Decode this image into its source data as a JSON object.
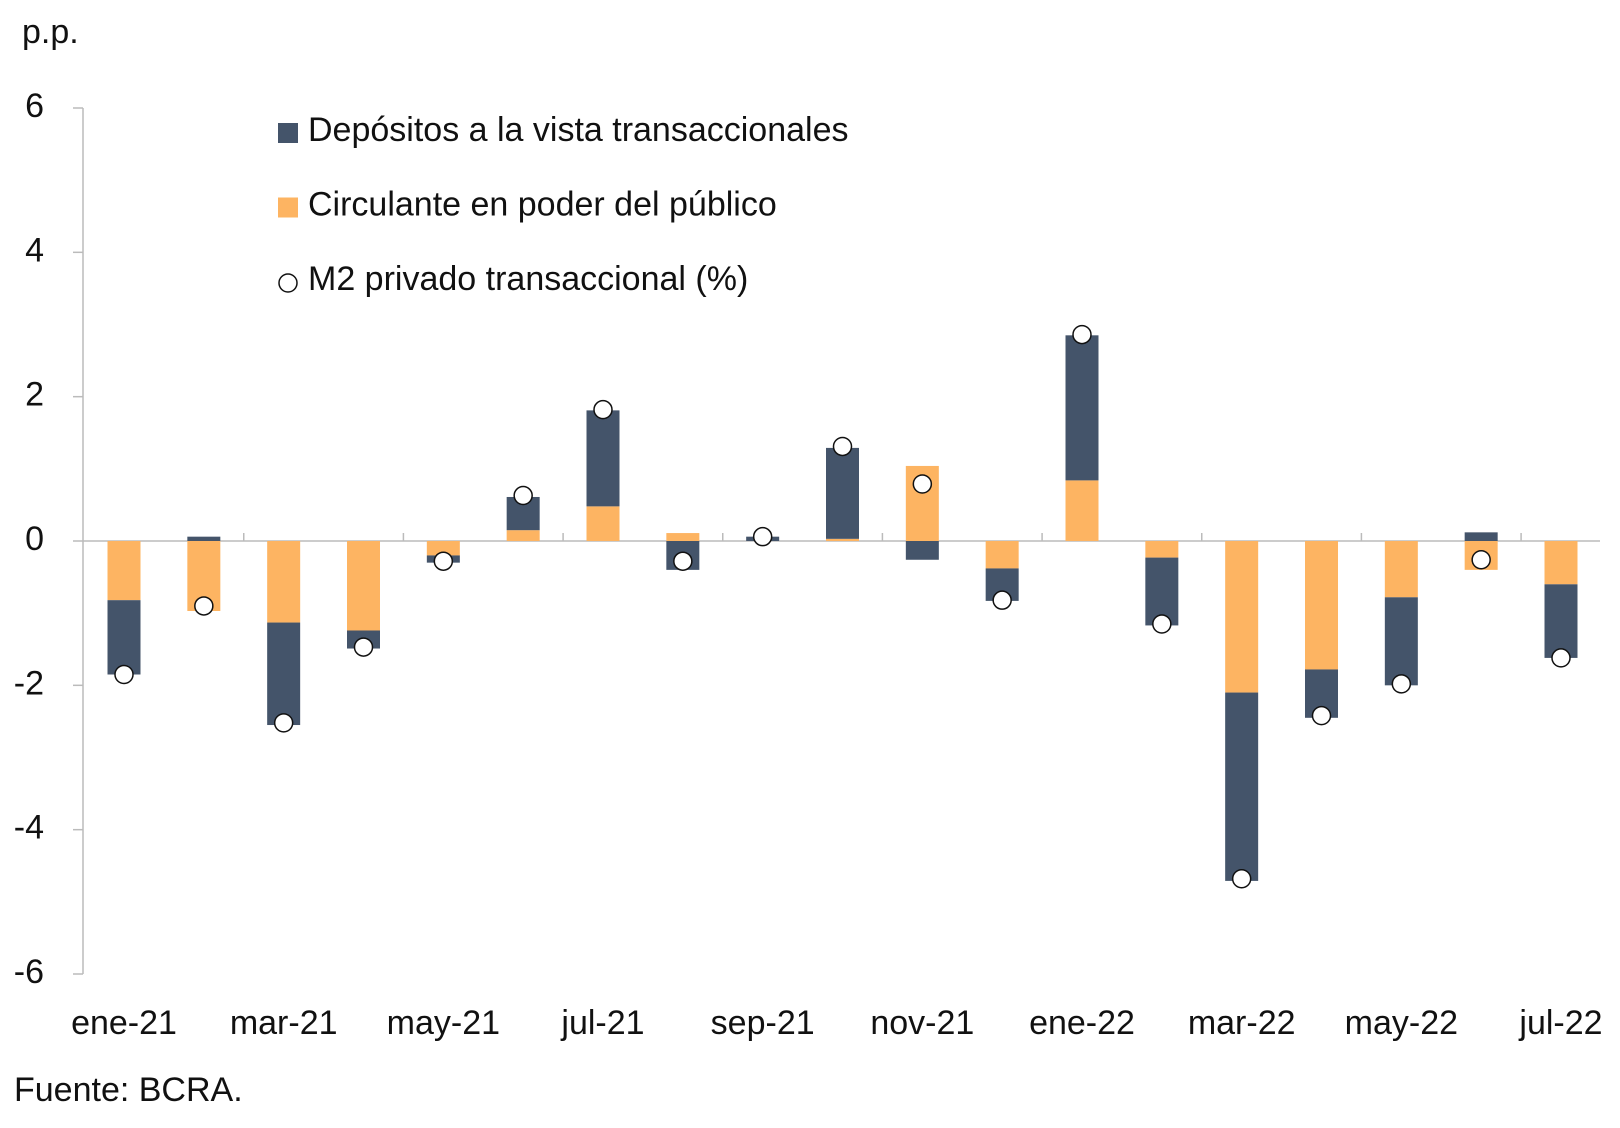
{
  "chart_data": {
    "type": "bar",
    "stacked": true,
    "y_unit": "p.p.",
    "source": "Fuente: BCRA.",
    "categories": [
      "ene-21",
      null,
      "mar-21",
      null,
      "may-21",
      null,
      "jul-21",
      null,
      "sep-21",
      null,
      "nov-21",
      null,
      "ene-22",
      null,
      "mar-22",
      null,
      "may-22",
      null,
      "jul-22"
    ],
    "series": [
      {
        "name": "Depósitos a la vista transaccionales",
        "type": "bar",
        "color": "#44546a",
        "values": [
          -1.03,
          0.06,
          -1.42,
          -0.25,
          -0.1,
          0.46,
          1.33,
          -0.4,
          0.06,
          1.26,
          -0.26,
          -0.45,
          2.01,
          -0.94,
          -2.61,
          -0.67,
          -1.22,
          0.12,
          -1.02
        ]
      },
      {
        "name": "Circulante en poder del público",
        "type": "bar",
        "color": "#fdb462",
        "values": [
          -0.82,
          -0.97,
          -1.13,
          -1.24,
          -0.2,
          0.15,
          0.48,
          0.11,
          0,
          0.03,
          1.04,
          -0.38,
          0.84,
          -0.23,
          -2.1,
          -1.78,
          -0.78,
          -0.4,
          -0.6
        ]
      },
      {
        "name": "M2 privado transaccional (%)",
        "type": "scatter",
        "color": "#ffffff",
        "values": [
          -1.85,
          -0.9,
          -2.52,
          -1.47,
          -0.28,
          0.63,
          1.82,
          -0.28,
          0.06,
          1.31,
          0.79,
          -0.82,
          2.86,
          -1.15,
          -4.68,
          -2.42,
          -1.98,
          -0.26,
          -1.62
        ]
      }
    ],
    "ylim": [
      -6,
      6
    ],
    "yticks": [
      6,
      4,
      2,
      0,
      -2,
      -4,
      -6
    ],
    "grid": false
  }
}
